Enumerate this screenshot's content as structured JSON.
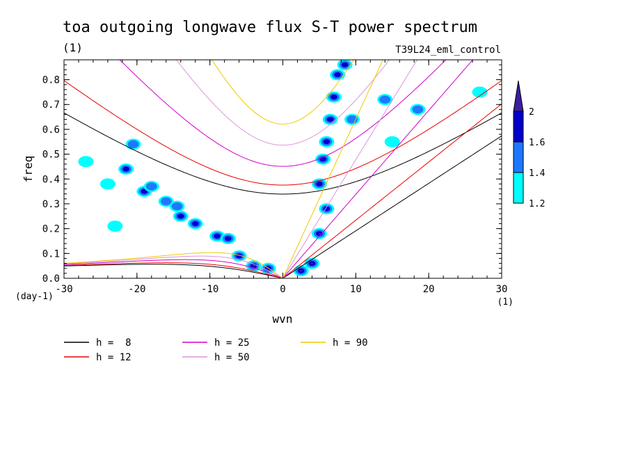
{
  "chart_data": {
    "type": "contour",
    "title": "toa outgoing longwave flux S-T power spectrum",
    "units_label": "(1)",
    "subtitle": "T39L24_eml_control",
    "xlabel": "wvn",
    "ylabel": "freq",
    "x_unit": "(1)",
    "y_unit": "(day-1)",
    "xlim": [
      -30,
      30
    ],
    "ylim": [
      0,
      0.88
    ],
    "x_ticks": [
      "-30",
      "-20",
      "-10",
      "0",
      "10",
      "20",
      "30"
    ],
    "y_ticks": [
      "0.0",
      "0.1",
      "0.2",
      "0.3",
      "0.4",
      "0.5",
      "0.6",
      "0.7",
      "0.8"
    ],
    "colorbar": {
      "levels": [
        "1.2",
        "1.4",
        "1.6",
        "2"
      ],
      "colors": [
        "#00ffff",
        "#1e78ff",
        "#0000c8",
        "#3c1ea0"
      ],
      "extend": "max"
    },
    "dispersion_curves": [
      {
        "name": "h =  8",
        "h": 8,
        "color": "#000000"
      },
      {
        "name": "h = 12",
        "h": 12,
        "color": "#e60000"
      },
      {
        "name": "h = 25",
        "h": 25,
        "color": "#d200c8"
      },
      {
        "name": "h = 50",
        "h": 50,
        "color": "#dc96dc"
      },
      {
        "name": "h = 90",
        "h": 90,
        "color": "#f0c800"
      }
    ],
    "power_blobs": [
      {
        "k": -21.5,
        "f": 0.44,
        "level": 3
      },
      {
        "k": -20.5,
        "f": 0.54,
        "level": 2
      },
      {
        "k": -19,
        "f": 0.35,
        "level": 3
      },
      {
        "k": -18,
        "f": 0.37,
        "level": 2
      },
      {
        "k": -16,
        "f": 0.31,
        "level": 2
      },
      {
        "k": -14.5,
        "f": 0.29,
        "level": 2
      },
      {
        "k": -14,
        "f": 0.25,
        "level": 3
      },
      {
        "k": -12,
        "f": 0.22,
        "level": 3
      },
      {
        "k": -9,
        "f": 0.17,
        "level": 3
      },
      {
        "k": -7.5,
        "f": 0.16,
        "level": 3
      },
      {
        "k": -6,
        "f": 0.09,
        "level": 3
      },
      {
        "k": -4,
        "f": 0.05,
        "level": 4
      },
      {
        "k": -2,
        "f": 0.04,
        "level": 4
      },
      {
        "k": -24,
        "f": 0.38,
        "level": 1
      },
      {
        "k": -27,
        "f": 0.47,
        "level": 1
      },
      {
        "k": -23,
        "f": 0.21,
        "level": 1
      },
      {
        "k": 2.5,
        "f": 0.03,
        "level": 4
      },
      {
        "k": 4,
        "f": 0.06,
        "level": 4
      },
      {
        "k": 5,
        "f": 0.18,
        "level": 4
      },
      {
        "k": 6,
        "f": 0.28,
        "level": 3
      },
      {
        "k": 5,
        "f": 0.38,
        "level": 3
      },
      {
        "k": 5.5,
        "f": 0.48,
        "level": 3
      },
      {
        "k": 6,
        "f": 0.55,
        "level": 3
      },
      {
        "k": 6.5,
        "f": 0.64,
        "level": 3
      },
      {
        "k": 7,
        "f": 0.73,
        "level": 3
      },
      {
        "k": 7.5,
        "f": 0.82,
        "level": 3
      },
      {
        "k": 8.5,
        "f": 0.86,
        "level": 3
      },
      {
        "k": 9.5,
        "f": 0.64,
        "level": 2
      },
      {
        "k": 14,
        "f": 0.72,
        "level": 2
      },
      {
        "k": 18.5,
        "f": 0.68,
        "level": 2
      },
      {
        "k": 27,
        "f": 0.75,
        "level": 1
      },
      {
        "k": 15,
        "f": 0.55,
        "level": 1
      }
    ]
  }
}
